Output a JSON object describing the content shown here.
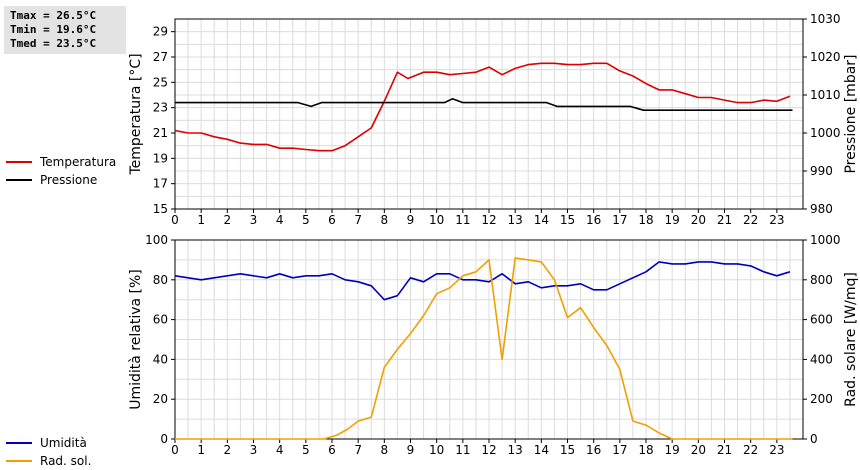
{
  "stats": {
    "tmax": "Tmax = 26.5°C",
    "tmin": "Tmin = 19.6°C",
    "tmed": "Tmed = 23.5°C"
  },
  "legend_top": [
    {
      "label": "Temperatura",
      "color": "#dd0000"
    },
    {
      "label": "Pressione",
      "color": "#000000"
    }
  ],
  "legend_bottom": [
    {
      "label": "Umidità",
      "color": "#0000bb"
    },
    {
      "label": "Rad. sol.",
      "color": "#f0a000"
    }
  ],
  "chart_data": [
    {
      "type": "line",
      "ylabel": "Temperatura [°C]",
      "y2label": "Pressione [mbar]",
      "xlim": [
        0,
        24
      ],
      "ylim": [
        15,
        30
      ],
      "y2lim": [
        980,
        1030
      ],
      "x_ticks": [
        "0",
        "1",
        "2",
        "3",
        "4",
        "5",
        "6",
        "7",
        "8",
        "9",
        "10",
        "11",
        "12",
        "13",
        "14",
        "15",
        "16",
        "17",
        "18",
        "19",
        "20",
        "21",
        "22",
        "23"
      ],
      "y_ticks": [
        "15",
        "17",
        "19",
        "21",
        "23",
        "25",
        "27",
        "29"
      ],
      "y2_ticks": [
        "980",
        "990",
        "1000",
        "1010",
        "1020",
        "1030"
      ],
      "grid": true,
      "series": [
        {
          "name": "Temperatura",
          "axis": "left",
          "color": "#dd0000",
          "x": [
            0,
            0.5,
            1,
            1.5,
            2,
            2.5,
            3,
            3.5,
            4,
            4.5,
            5,
            5.5,
            6,
            6.5,
            7,
            7.5,
            8,
            8.5,
            8.9,
            9.5,
            10,
            10.5,
            11,
            11.5,
            12,
            12.5,
            13,
            13.5,
            14,
            14.5,
            15,
            15.5,
            16,
            16.5,
            17,
            17.5,
            18,
            18.5,
            19,
            19.5,
            20,
            20.5,
            21,
            21.5,
            22,
            22.5,
            23,
            23.5
          ],
          "y": [
            21.2,
            21.0,
            21.0,
            20.7,
            20.5,
            20.2,
            20.1,
            20.1,
            19.8,
            19.8,
            19.7,
            19.6,
            19.6,
            20.0,
            20.7,
            21.4,
            23.5,
            25.8,
            25.3,
            25.8,
            25.8,
            25.6,
            25.7,
            25.8,
            26.2,
            25.6,
            26.1,
            26.4,
            26.5,
            26.5,
            26.4,
            26.4,
            26.5,
            26.5,
            25.9,
            25.5,
            24.9,
            24.4,
            24.4,
            24.1,
            23.8,
            23.8,
            23.6,
            23.4,
            23.4,
            23.6,
            23.5,
            23.9
          ]
        },
        {
          "name": "Pressione",
          "axis": "right",
          "color": "#000000",
          "x": [
            0,
            4.7,
            5.2,
            5.6,
            10.3,
            10.6,
            11,
            14.2,
            14.6,
            17.4,
            17.9,
            23.6
          ],
          "y": [
            1008,
            1008,
            1007,
            1008,
            1008,
            1009,
            1008,
            1008,
            1007,
            1007,
            1006,
            1006
          ]
        }
      ]
    },
    {
      "type": "line",
      "ylabel": "Umidità relativa [%]",
      "y2label": "Rad. solare [W/mq]",
      "xlim": [
        0,
        24
      ],
      "ylim": [
        0,
        100
      ],
      "y2lim": [
        0,
        1000
      ],
      "x_ticks": [
        "0",
        "1",
        "2",
        "3",
        "4",
        "5",
        "6",
        "7",
        "8",
        "9",
        "10",
        "11",
        "12",
        "13",
        "14",
        "15",
        "16",
        "17",
        "18",
        "19",
        "20",
        "21",
        "22",
        "23"
      ],
      "y_ticks": [
        "0",
        "20",
        "40",
        "60",
        "80",
        "100"
      ],
      "y2_ticks": [
        "0",
        "200",
        "400",
        "600",
        "800",
        "1000"
      ],
      "grid": true,
      "series": [
        {
          "name": "Umidità",
          "axis": "left",
          "color": "#0000bb",
          "x": [
            0,
            0.5,
            1,
            1.5,
            2,
            2.5,
            3,
            3.5,
            4,
            4.5,
            5,
            5.5,
            6,
            6.5,
            7,
            7.5,
            8,
            8.5,
            9,
            9.5,
            10,
            10.5,
            11,
            11.5,
            12,
            12.5,
            13,
            13.5,
            14,
            14.5,
            15,
            15.5,
            16,
            16.5,
            17,
            17.5,
            18,
            18.5,
            19,
            19.5,
            20,
            20.5,
            21,
            21.5,
            22,
            22.5,
            23,
            23.5
          ],
          "y": [
            82,
            81,
            80,
            81,
            82,
            83,
            82,
            81,
            83,
            81,
            82,
            82,
            83,
            80,
            79,
            77,
            70,
            72,
            81,
            79,
            83,
            83,
            80,
            80,
            79,
            83,
            78,
            79,
            76,
            77,
            77,
            78,
            75,
            75,
            78,
            81,
            84,
            89,
            88,
            88,
            89,
            89,
            88,
            88,
            87,
            84,
            82,
            84
          ]
        },
        {
          "name": "Rad. sol.",
          "axis": "right",
          "color": "#f0a000",
          "x": [
            0,
            1,
            2,
            3,
            4,
            5,
            5.7,
            6.2,
            6.6,
            7,
            7.5,
            8,
            8.5,
            9,
            9.5,
            10,
            10.5,
            11,
            11.5,
            12,
            12.5,
            13,
            13.5,
            14,
            14.5,
            15,
            15.5,
            16,
            16.5,
            17,
            17.5,
            18,
            18.5,
            19,
            20,
            21,
            22,
            23,
            23.6
          ],
          "y": [
            0,
            0,
            0,
            0,
            0,
            0,
            0,
            20,
            50,
            90,
            110,
            360,
            450,
            530,
            620,
            730,
            760,
            820,
            840,
            900,
            400,
            910,
            900,
            890,
            800,
            610,
            660,
            560,
            470,
            350,
            90,
            70,
            30,
            0,
            0,
            0,
            0,
            0,
            0
          ]
        }
      ]
    }
  ]
}
